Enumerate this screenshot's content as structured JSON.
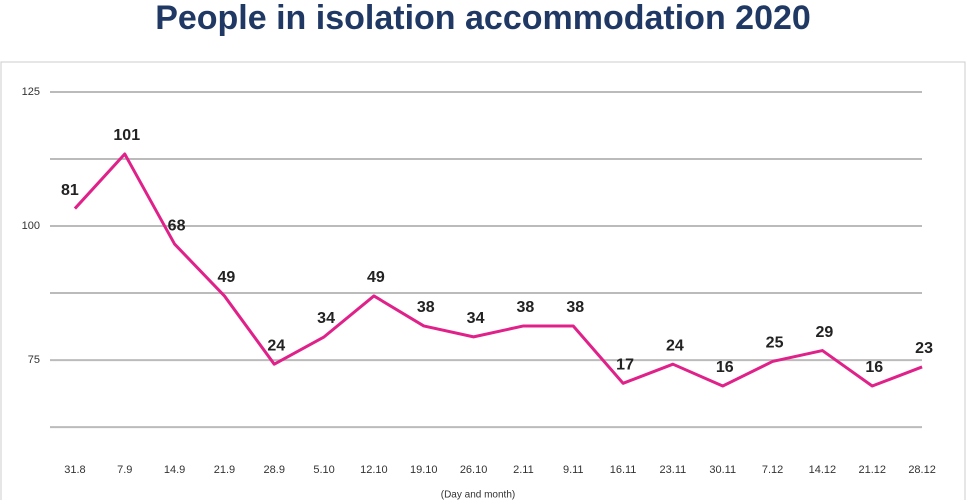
{
  "chart_data": {
    "type": "line",
    "title": "People in isolation accommodation 2020",
    "x_label": "(Day and month)",
    "categories": [
      "31.8",
      "7.9",
      "14.9",
      "21.9",
      "28.9",
      "5.10",
      "12.10",
      "19.10",
      "26.10",
      "2.11",
      "9.11",
      "16.11",
      "23.11",
      "30.11",
      "7.12",
      "14.12",
      "21.12",
      "28.12"
    ],
    "series": [
      {
        "color": "#e0218a",
        "axis": "y2",
        "values": [
          81,
          101,
          68,
          49,
          24,
          34,
          49,
          38,
          34,
          38,
          38,
          17,
          24,
          16,
          25,
          29,
          16,
          23
        ]
      }
    ],
    "ylim": [
      58.6,
      125
    ],
    "yticks": [
      125,
      100,
      75
    ],
    "minor_yticks": [
      112.5,
      87.5,
      62.5
    ],
    "y2lim": [
      -6.7,
      123.7
    ],
    "grid": true
  }
}
